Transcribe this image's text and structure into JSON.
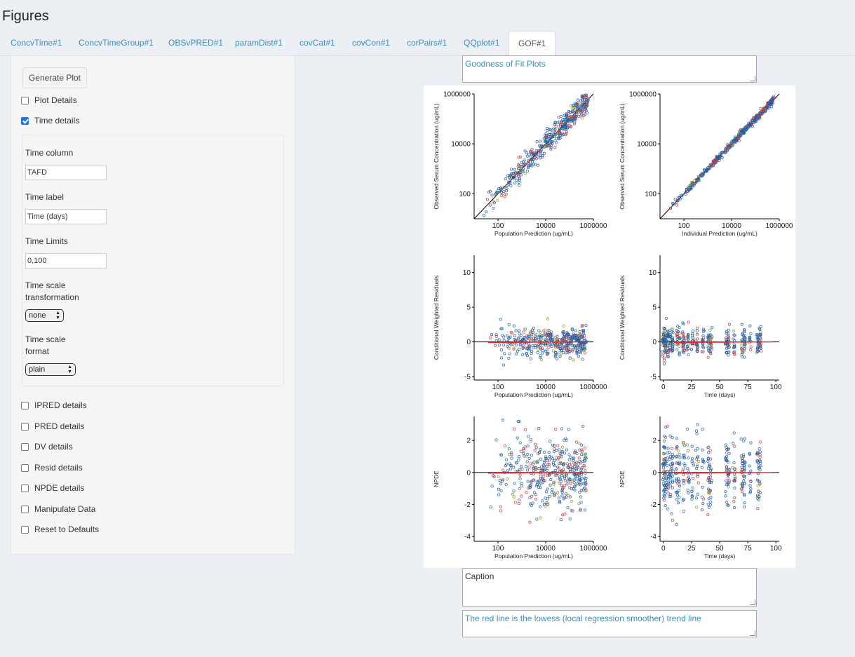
{
  "page_title": "Figures",
  "tabs": [
    {
      "label": "ConcvTime#1",
      "active": false
    },
    {
      "label": "ConcvTimeGroup#1",
      "active": false
    },
    {
      "label": "OBSvPRED#1",
      "active": false
    },
    {
      "label": "paramDist#1",
      "active": false
    },
    {
      "label": "covCat#1",
      "active": false
    },
    {
      "label": "covCon#1",
      "active": false
    },
    {
      "label": "corPairs#1",
      "active": false
    },
    {
      "label": "QQplot#1",
      "active": false
    },
    {
      "label": "GOF#1",
      "active": true
    }
  ],
  "sidebar": {
    "generate_button": "Generate Plot",
    "plot_details": {
      "label": "Plot Details",
      "checked": false
    },
    "time_details": {
      "label": "Time details",
      "checked": true
    },
    "time_panel": {
      "time_column_label": "Time column",
      "time_column_value": "TAFD",
      "time_label_label": "Time label",
      "time_label_value": "Time (days)",
      "time_limits_label": "Time Limits",
      "time_limits_value": "0,100",
      "scale_transform_label_1": "Time scale",
      "scale_transform_label_2": "transformation",
      "scale_transform_value": "none",
      "scale_format_label_1": "Time scale",
      "scale_format_label_2": "format",
      "scale_format_value": "plain"
    },
    "other_options": [
      {
        "label": "IPRED details",
        "checked": false
      },
      {
        "label": "PRED details",
        "checked": false
      },
      {
        "label": "DV details",
        "checked": false
      },
      {
        "label": "Resid details",
        "checked": false
      },
      {
        "label": "NPDE details",
        "checked": false
      },
      {
        "label": "Manipulate Data",
        "checked": false
      },
      {
        "label": "Reset to Defaults",
        "checked": false
      }
    ]
  },
  "title_box": "Goodness of Fit Plots",
  "caption_box": "Caption",
  "footnote_box": "The red line is the lowess (local regression smoother) trend line",
  "colors": {
    "accent": "#3c8dbc",
    "points_blue": "#1f5fa6",
    "points_red": "#d23a3a",
    "points_olive": "#8a9a2a",
    "trend_red": "#e8262a"
  },
  "chart_data": [
    {
      "type": "scatter",
      "xlabel": "Population Prediction (ug/mL)",
      "ylabel": "Observed Serum Concentration (ug/mL)",
      "x_scale": "log10",
      "y_scale": "log10",
      "xticks": [
        "100",
        "10000",
        "1000000"
      ],
      "yticks": [
        "100",
        "10000",
        "1000000"
      ],
      "xlim": [
        10,
        1000000
      ],
      "ylim": [
        10,
        1000000
      ],
      "reference_line": "identity",
      "note": "points scattered around identity line"
    },
    {
      "type": "scatter",
      "xlabel": "Individual Prediction (ug/mL)",
      "ylabel": "Observed Serum Concentration (ug/mL)",
      "x_scale": "log10",
      "y_scale": "log10",
      "xticks": [
        "100",
        "10000",
        "1000000"
      ],
      "yticks": [
        "100",
        "10000",
        "1000000"
      ],
      "xlim": [
        10,
        1000000
      ],
      "ylim": [
        10,
        1000000
      ],
      "reference_line": "identity"
    },
    {
      "type": "scatter",
      "xlabel": "Population Prediction (ug/mL)",
      "ylabel": "Conditional Weighted Residuals",
      "x_scale": "log10",
      "xticks": [
        "100",
        "10000",
        "1000000"
      ],
      "yticks": [
        "-5",
        "0",
        "5",
        "10"
      ],
      "xlim": [
        10,
        1000000
      ],
      "ylim": [
        -5.5,
        12.5
      ],
      "reference_line": "y=0",
      "trend": "lowess"
    },
    {
      "type": "scatter",
      "xlabel": "Time (days)",
      "ylabel": "Conditional Weighted Residuals",
      "xticks": [
        "0",
        "25",
        "50",
        "75",
        "100"
      ],
      "yticks": [
        "-5",
        "0",
        "5",
        "10"
      ],
      "xlim": [
        -3,
        103
      ],
      "ylim": [
        -5.5,
        12.5
      ],
      "reference_line": "y=0",
      "trend": "lowess"
    },
    {
      "type": "scatter",
      "xlabel": "Population Prediction (ug/mL)",
      "ylabel": "NPDE",
      "x_scale": "log10",
      "xticks": [
        "100",
        "10000",
        "1000000"
      ],
      "yticks": [
        "-4",
        "-2",
        "0",
        "2"
      ],
      "xlim": [
        10,
        1000000
      ],
      "ylim": [
        -4.3,
        3.5
      ],
      "reference_line": "y=0",
      "trend": "lowess"
    },
    {
      "type": "scatter",
      "xlabel": "Time (days)",
      "ylabel": "NPDE",
      "xticks": [
        "0",
        "25",
        "50",
        "75",
        "100"
      ],
      "yticks": [
        "-4",
        "-2",
        "0",
        "2"
      ],
      "xlim": [
        -3,
        103
      ],
      "ylim": [
        -4.3,
        3.5
      ],
      "reference_line": "y=0",
      "trend": "lowess"
    }
  ]
}
